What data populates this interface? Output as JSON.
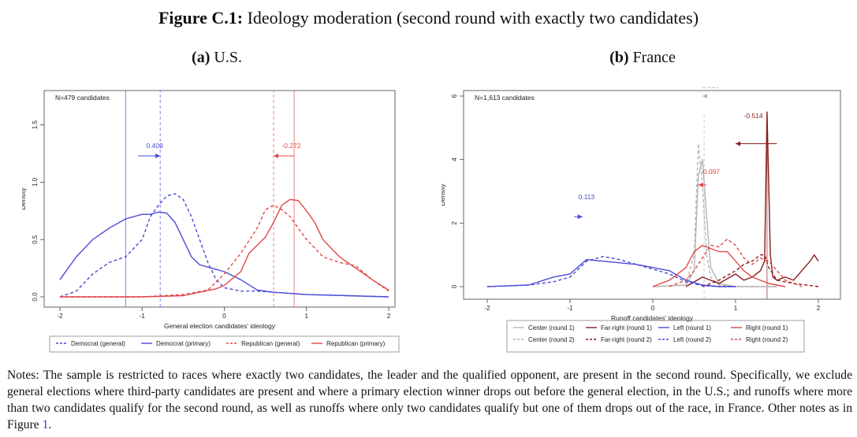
{
  "figure": {
    "label": "Figure C.1:",
    "title": "Ideology moderation (second round with exactly two candidates)"
  },
  "notes": {
    "text": "Notes: The sample is restricted to races where exactly two candidates, the leader and the qualified opponent, are present in the second round. Specifically, we exclude general elections where third-party candidates are present and where a primary election winner drops out before the general election, in the U.S.; and runoffs where more than two candidates qualify for the second round, as well as runoffs where only two candidates qualify but one of them drops out of the race, in France. Other notes as in Figure ",
    "ref": "1",
    "end": "."
  },
  "colors": {
    "blue": "#4a4ad8",
    "red": "#e04848",
    "gray": "#b5b5b5",
    "darkred": "#8a1c1c"
  },
  "chart_data": [
    {
      "type": "line",
      "panel_label": "(a)",
      "panel_title": "U.S.",
      "annotation": "N=479 candidates",
      "xlabel": "General election candidates' ideology",
      "ylabel": "Density",
      "xlim": [
        -2,
        2
      ],
      "ylim": [
        0,
        1.8
      ],
      "xticks": [
        -2,
        -1,
        0,
        1,
        2
      ],
      "xtick_labels": [
        "-2",
        "-1",
        "0",
        "1",
        "2"
      ],
      "yticks": [
        0,
        0.5,
        1.0,
        1.5
      ],
      "ytick_labels": [
        "0.0",
        "0.5",
        "1.0",
        "1.5"
      ],
      "series": [
        {
          "name": "Democrat (general)",
          "color": "blue",
          "dash": true,
          "x": [
            -2,
            -1.8,
            -1.6,
            -1.4,
            -1.2,
            -1.0,
            -0.9,
            -0.8,
            -0.7,
            -0.6,
            -0.5,
            -0.4,
            -0.3,
            -0.2,
            -0.1,
            0.0,
            0.2,
            0.4,
            0.6,
            0.8,
            1.0,
            1.5,
            2.0
          ],
          "y": [
            0.0,
            0.05,
            0.2,
            0.3,
            0.35,
            0.5,
            0.7,
            0.8,
            0.88,
            0.9,
            0.85,
            0.7,
            0.5,
            0.3,
            0.15,
            0.08,
            0.05,
            0.05,
            0.04,
            0.03,
            0.02,
            0.01,
            0.0
          ]
        },
        {
          "name": "Democrat (primary)",
          "color": "blue",
          "dash": false,
          "x": [
            -2,
            -1.8,
            -1.6,
            -1.4,
            -1.2,
            -1.1,
            -1.0,
            -0.9,
            -0.8,
            -0.7,
            -0.6,
            -0.5,
            -0.4,
            -0.3,
            -0.2,
            0.0,
            0.2,
            0.4,
            0.6,
            0.8,
            1.0,
            1.5,
            2.0
          ],
          "y": [
            0.15,
            0.35,
            0.5,
            0.6,
            0.68,
            0.7,
            0.72,
            0.72,
            0.74,
            0.73,
            0.65,
            0.5,
            0.35,
            0.28,
            0.26,
            0.22,
            0.15,
            0.06,
            0.04,
            0.03,
            0.02,
            0.01,
            0.0
          ]
        },
        {
          "name": "Republican (general)",
          "color": "red",
          "dash": true,
          "x": [
            -2,
            -1.0,
            -0.5,
            -0.2,
            0.0,
            0.2,
            0.4,
            0.5,
            0.6,
            0.7,
            0.8,
            0.9,
            1.0,
            1.2,
            1.4,
            1.6,
            1.8,
            2.0
          ],
          "y": [
            0.0,
            0.0,
            0.02,
            0.06,
            0.2,
            0.38,
            0.6,
            0.76,
            0.8,
            0.76,
            0.7,
            0.6,
            0.5,
            0.35,
            0.3,
            0.27,
            0.15,
            0.05
          ]
        },
        {
          "name": "Republican (primary)",
          "color": "red",
          "dash": false,
          "x": [
            -2,
            -1.0,
            -0.5,
            -0.3,
            -0.1,
            0.0,
            0.2,
            0.3,
            0.5,
            0.6,
            0.7,
            0.8,
            0.9,
            1.0,
            1.1,
            1.2,
            1.4,
            1.6,
            1.8,
            2.0
          ],
          "y": [
            0.0,
            0.0,
            0.01,
            0.04,
            0.07,
            0.1,
            0.22,
            0.38,
            0.52,
            0.65,
            0.8,
            0.85,
            0.84,
            0.75,
            0.65,
            0.5,
            0.35,
            0.25,
            0.15,
            0.06
          ]
        }
      ],
      "vlines": [
        {
          "x": -1.2,
          "color": "blue",
          "dash": false
        },
        {
          "x": -0.78,
          "color": "blue",
          "dash": true
        },
        {
          "x": 0.85,
          "color": "red",
          "dash": false
        },
        {
          "x": 0.6,
          "color": "red",
          "dash": true
        }
      ],
      "arrows": [
        {
          "label": "0.409",
          "color": "blue",
          "x_from": -1.05,
          "x_to": -0.78,
          "label_x": -0.95,
          "label_y": 1.3,
          "y": 1.23
        },
        {
          "label": "-0.272",
          "color": "red",
          "x_from": 0.85,
          "x_to": 0.6,
          "label_x": 0.7,
          "label_y": 1.3,
          "y": 1.23
        }
      ],
      "legend": [
        {
          "name": "Democrat (general)",
          "color": "blue",
          "dash": true
        },
        {
          "name": "Democrat (primary)",
          "color": "blue",
          "dash": false
        },
        {
          "name": "Republican (general)",
          "color": "red",
          "dash": true
        },
        {
          "name": "Republican (primary)",
          "color": "red",
          "dash": false
        }
      ],
      "legend_position": "bottom"
    },
    {
      "type": "line",
      "panel_label": "(b)",
      "panel_title": "France",
      "annotation": "N=1,613 candidates",
      "xlabel": "Runoff candidates' ideology",
      "ylabel": "Density",
      "xlim": [
        -2,
        2
      ],
      "ylim": [
        0,
        6
      ],
      "xticks": [
        -2,
        -1,
        0,
        1,
        2
      ],
      "xtick_labels": [
        "-2",
        "-1",
        "0",
        "1",
        "2"
      ],
      "yticks": [
        0,
        2,
        4,
        6
      ],
      "ytick_labels": [
        "0",
        "2",
        "4",
        "6"
      ],
      "series": [
        {
          "name": "Center (round 1)",
          "color": "gray",
          "dash": false,
          "x": [
            0.0,
            0.4,
            0.5,
            0.55,
            0.6,
            0.65,
            0.7,
            0.8,
            1.0,
            1.5
          ],
          "y": [
            0.0,
            0.05,
            0.5,
            3.5,
            4.0,
            2.2,
            0.6,
            0.1,
            0.0,
            0.0
          ]
        },
        {
          "name": "Center (round 2)",
          "color": "gray",
          "dash": true,
          "x": [
            0.0,
            0.4,
            0.5,
            0.55,
            0.6,
            0.65,
            0.7,
            0.8,
            1.0,
            1.5
          ],
          "y": [
            0.0,
            0.05,
            1.0,
            4.5,
            3.2,
            1.0,
            0.3,
            0.05,
            0.0,
            0.0
          ]
        },
        {
          "name": "Far-right (round 1)",
          "color": "darkred",
          "dash": false,
          "x": [
            0.4,
            0.6,
            0.8,
            1.0,
            1.1,
            1.2,
            1.3,
            1.35,
            1.38,
            1.42,
            1.45,
            1.5,
            1.6,
            1.7,
            1.8,
            1.9,
            1.95,
            2.0
          ],
          "y": [
            0.0,
            0.3,
            0.1,
            0.4,
            0.2,
            0.3,
            0.5,
            0.8,
            5.5,
            1.0,
            0.3,
            0.2,
            0.3,
            0.2,
            0.5,
            0.8,
            1.0,
            0.8
          ]
        },
        {
          "name": "Far-right (round 2)",
          "color": "darkred",
          "dash": true,
          "x": [
            0.6,
            0.8,
            1.0,
            1.1,
            1.2,
            1.3,
            1.35,
            1.4,
            1.5,
            1.7,
            2.0
          ],
          "y": [
            0.0,
            0.2,
            0.5,
            0.7,
            0.8,
            1.0,
            1.0,
            0.6,
            0.2,
            0.1,
            0.0
          ]
        },
        {
          "name": "Left (round 1)",
          "color": "blue",
          "dash": false,
          "x": [
            -2,
            -1.5,
            -1.2,
            -1.0,
            -0.8,
            -0.6,
            -0.4,
            -0.2,
            0.0,
            0.2,
            0.4,
            0.6,
            0.8,
            1.0
          ],
          "y": [
            0.0,
            0.05,
            0.3,
            0.4,
            0.85,
            0.8,
            0.75,
            0.7,
            0.6,
            0.5,
            0.2,
            0.05,
            0.0,
            0.0
          ]
        },
        {
          "name": "Left (round 2)",
          "color": "blue",
          "dash": true,
          "x": [
            -2,
            -1.5,
            -1.2,
            -1.0,
            -0.8,
            -0.6,
            -0.4,
            -0.2,
            0.0,
            0.2,
            0.4,
            0.6,
            0.8,
            1.0
          ],
          "y": [
            0.0,
            0.05,
            0.15,
            0.3,
            0.8,
            0.95,
            0.85,
            0.7,
            0.55,
            0.4,
            0.15,
            0.03,
            0.0,
            0.0
          ]
        },
        {
          "name": "Right (round 1)",
          "color": "red",
          "dash": false,
          "x": [
            0.0,
            0.2,
            0.4,
            0.5,
            0.6,
            0.7,
            0.8,
            0.9,
            1.0,
            1.1,
            1.2,
            1.4,
            1.6
          ],
          "y": [
            0.0,
            0.2,
            0.6,
            1.1,
            1.3,
            1.2,
            1.1,
            1.1,
            0.8,
            0.5,
            0.3,
            0.1,
            0.0
          ]
        },
        {
          "name": "Right (round 2)",
          "color": "red",
          "dash": true,
          "x": [
            0.2,
            0.4,
            0.5,
            0.6,
            0.7,
            0.8,
            0.9,
            1.0,
            1.1,
            1.2,
            1.3,
            1.4,
            1.6,
            1.8
          ],
          "y": [
            0.0,
            0.2,
            0.5,
            0.9,
            1.3,
            1.25,
            1.5,
            1.3,
            0.9,
            0.7,
            0.9,
            0.8,
            0.2,
            0.0
          ]
        }
      ],
      "vlines": [
        {
          "x": 0.62,
          "y_max": 5.5,
          "color": "gray",
          "dash": true
        },
        {
          "x": 1.38,
          "y_max": 5.5,
          "color": "darkred",
          "dash": false
        }
      ],
      "arrows": [
        {
          "label": "0.113",
          "color": "blue",
          "x_from": -0.95,
          "x_to": -0.85,
          "label_x": -0.9,
          "label_y": 2.75,
          "y": 2.2
        },
        {
          "label": "-0.019",
          "color": "gray",
          "x_from": 0.62,
          "x_to": 0.6,
          "label_x": 0.57,
          "label_y": 6.25,
          "y": 6.0
        },
        {
          "label": "-0.097",
          "color": "red",
          "x_from": 0.65,
          "x_to": 0.55,
          "label_x": 0.58,
          "label_y": 3.55,
          "y": 3.2
        },
        {
          "label": "-0.514",
          "color": "darkred",
          "x_from": 1.5,
          "x_to": 1.0,
          "label_x": 1.1,
          "label_y": 5.3,
          "y": 4.5
        }
      ],
      "legend": [
        {
          "name": "Center (round 1)",
          "color": "gray",
          "dash": false
        },
        {
          "name": "Far-right (round 1)",
          "color": "darkred",
          "dash": false
        },
        {
          "name": "Left (round 1)",
          "color": "blue",
          "dash": false
        },
        {
          "name": "Right (round 1)",
          "color": "red",
          "dash": false
        },
        {
          "name": "Center (round 2)",
          "color": "gray",
          "dash": true
        },
        {
          "name": "Far-right (round 2)",
          "color": "darkred",
          "dash": true
        },
        {
          "name": "Left (round 2)",
          "color": "blue",
          "dash": true
        },
        {
          "name": "Right (round 2)",
          "color": "red",
          "dash": true
        }
      ],
      "legend_position": "bottom"
    }
  ]
}
